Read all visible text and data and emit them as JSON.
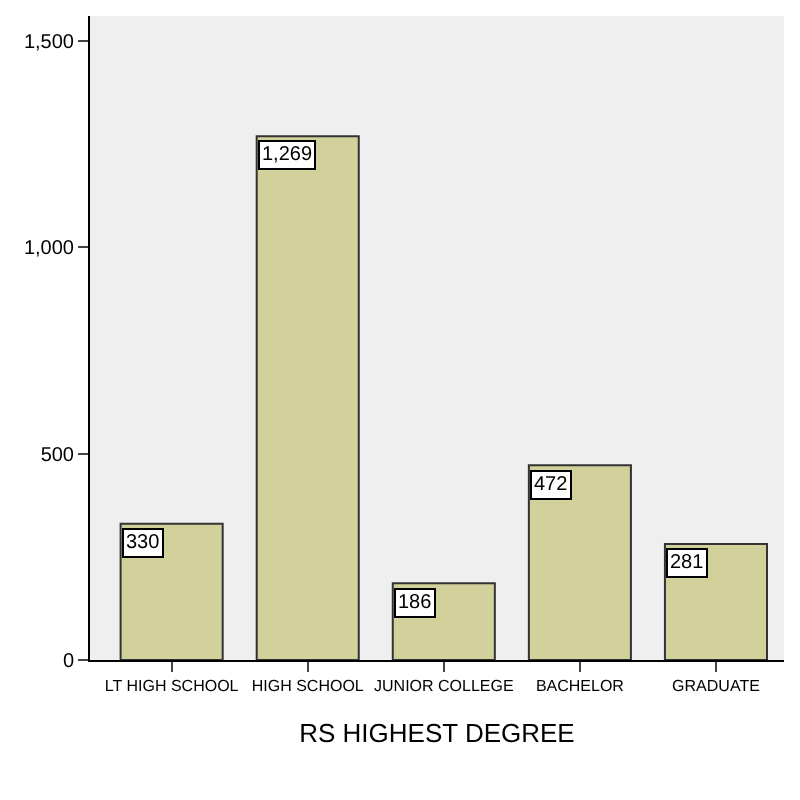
{
  "chart_data": {
    "type": "bar",
    "xlabel": "RS HIGHEST DEGREE",
    "categories": [
      "LT HIGH SCHOOL",
      "HIGH SCHOOL",
      "JUNIOR COLLEGE",
      "BACHELOR",
      "GRADUATE"
    ],
    "values": [
      330,
      1269,
      186,
      472,
      281
    ],
    "color": "#d2d19c",
    "ylim": [
      0,
      1560
    ],
    "yticks": [
      0,
      500,
      {
        "value": 1000,
        "label": "1,000"
      },
      {
        "value": 1500,
        "label": "1,500"
      }
    ],
    "value_labels": [
      "330",
      "1,269",
      "186",
      "472",
      "281"
    ],
    "grid": false,
    "legend": false
  }
}
